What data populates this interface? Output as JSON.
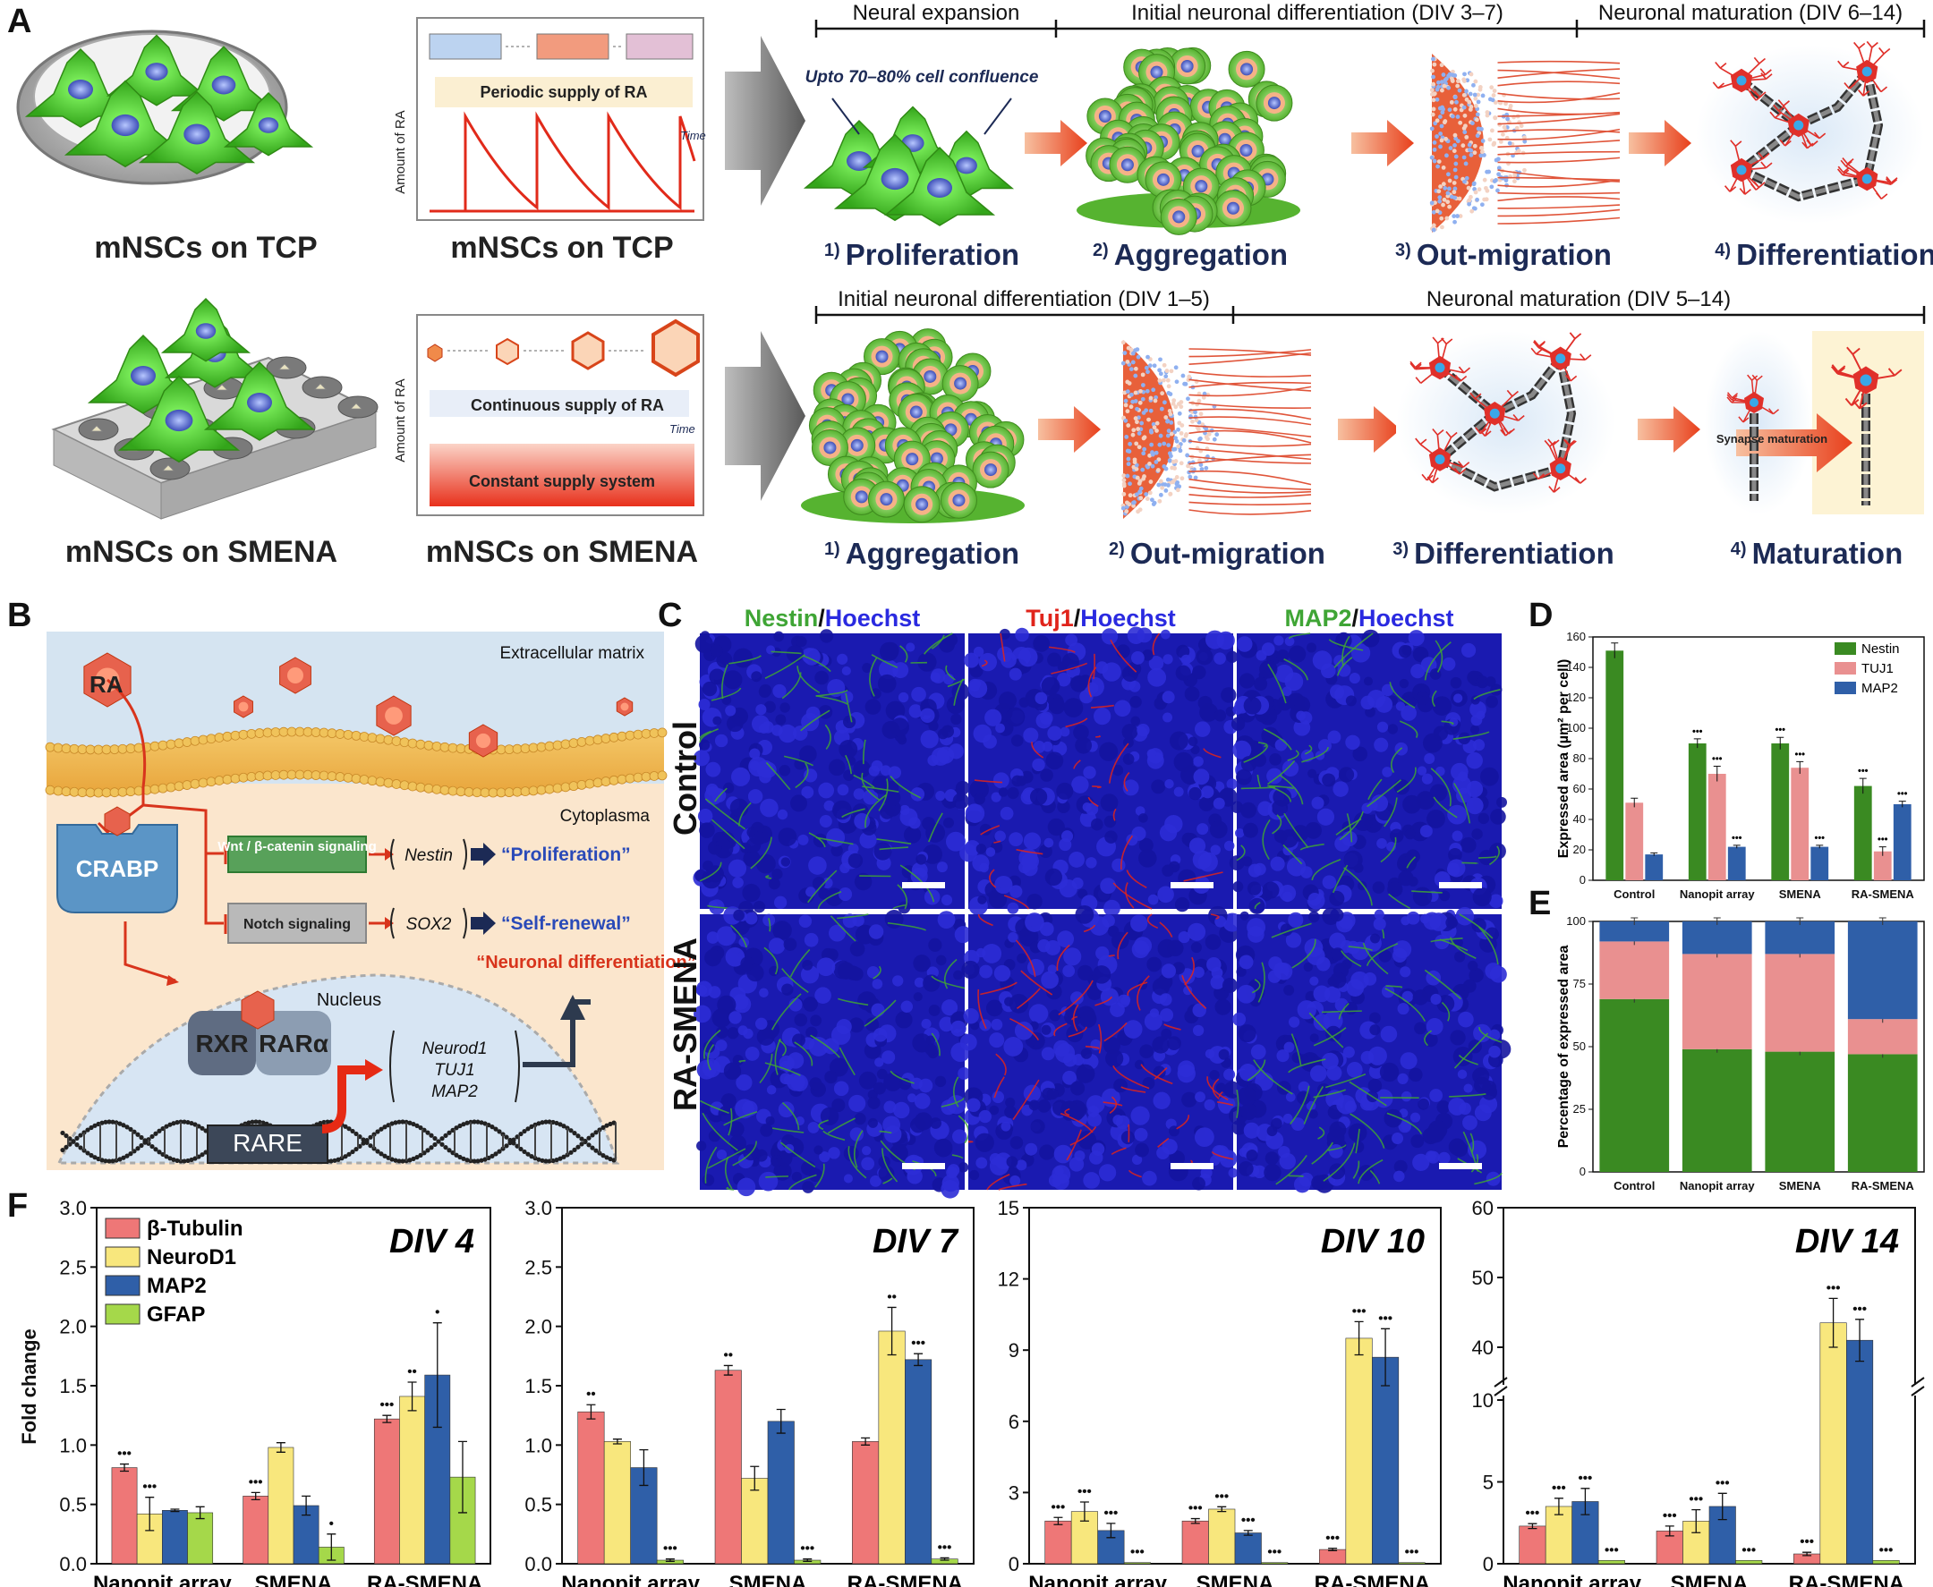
{
  "panel_letters": [
    "A",
    "B",
    "C",
    "D",
    "E",
    "F"
  ],
  "panel_a": {
    "row1_cells_label": "mNSCs on TCP",
    "row1_ra_label": "mNSCs on TCP",
    "row2_cells_label": "mNSCs on SMENA",
    "row2_ra_label": "mNSCs on SMENA",
    "ra_axis": "Amount of RA",
    "time_label": "Time",
    "periodic": "Periodic supply of RA",
    "continuous": "Continuous supply of RA",
    "constant": "Constant supply system",
    "confluence": "Upto 70–80% cell confluence",
    "synapse": "Synapse maturation",
    "row1_phases": [
      "Neural expansion",
      "Initial neuronal differentiation (DIV 3–7)",
      "Neuronal maturation (DIV 6–14)"
    ],
    "row2_phases": [
      "Initial neuronal differentiation (DIV 1–5)",
      "Neuronal maturation (DIV 5–14)"
    ],
    "row1_steps": [
      {
        "n": "1)",
        "t": "Proliferation"
      },
      {
        "n": "2)",
        "t": "Aggregation"
      },
      {
        "n": "3)",
        "t": "Out-migration"
      },
      {
        "n": "4)",
        "t": "Differentiation"
      }
    ],
    "row2_steps": [
      {
        "n": "1)",
        "t": "Aggregation"
      },
      {
        "n": "2)",
        "t": "Out-migration"
      },
      {
        "n": "3)",
        "t": "Differentiation"
      },
      {
        "n": "4)",
        "t": "Maturation"
      }
    ]
  },
  "panel_b": {
    "ra": "RA",
    "ecm": "Extracellular matrix",
    "cytoplasma": "Cytoplasma",
    "crabp": "CRABP",
    "wnt": "Wnt / β-catenin signaling",
    "notch": "Notch signaling",
    "nestin": "Nestin",
    "sox2": "SOX2",
    "proliferation": "“Proliferation”",
    "self_renewal": "“Self-renewal”",
    "neuronal_diff": "“Neuronal differentiation”",
    "nucleus": "Nucleus",
    "rxr": "RXR",
    "rar": "RARα",
    "rare": "RARE",
    "genes": [
      "Neurod1",
      "TUJ1",
      "MAP2"
    ]
  },
  "panel_c": {
    "columns": [
      {
        "a": "Nestin",
        "b": "/",
        "c": "Hoechst",
        "color": "#3fa535"
      },
      {
        "a": "Tuj1",
        "b": "/",
        "c": "Hoechst",
        "color": "#e0241b"
      },
      {
        "a": "MAP2",
        "b": "/",
        "c": "Hoechst",
        "color": "#3fa535"
      }
    ],
    "hoechst_color": "#2a2ae0",
    "rows": [
      "Control",
      "RA-SMENA"
    ]
  },
  "chart_data": [
    {
      "id": "D",
      "type": "bar",
      "categories": [
        "Control",
        "Nanopit array",
        "SMENA",
        "RA-SMENA"
      ],
      "series": [
        {
          "name": "Nestin",
          "color": "#3a8a22",
          "values": [
            151,
            90,
            90,
            62
          ],
          "err": [
            5,
            3,
            4,
            5
          ],
          "sig": [
            "",
            "•••",
            "•••",
            "•••"
          ]
        },
        {
          "name": "TUJ1",
          "color": "#e99090",
          "values": [
            51,
            70,
            74,
            19
          ],
          "err": [
            3,
            5,
            4,
            3
          ],
          "sig": [
            "",
            "•••",
            "•••",
            "•••"
          ]
        },
        {
          "name": "MAP2",
          "color": "#2f5fa8",
          "values": [
            17,
            22,
            22,
            50
          ],
          "err": [
            1,
            1,
            1,
            2
          ],
          "sig": [
            "",
            "•••",
            "•••",
            "•••"
          ]
        }
      ],
      "ylabel": "Expressed area (µm² per cell)",
      "ylim": [
        0,
        160
      ],
      "yticks": [
        0,
        20,
        40,
        60,
        80,
        100,
        120,
        140,
        160
      ]
    },
    {
      "id": "E",
      "type": "bar",
      "stacked": true,
      "categories": [
        "Control",
        "Nanopit array",
        "SMENA",
        "RA-SMENA"
      ],
      "series": [
        {
          "name": "Nestin",
          "color": "#3a8a22",
          "values": [
            69,
            49,
            48,
            47
          ]
        },
        {
          "name": "TUJ1",
          "color": "#e99090",
          "values": [
            23,
            38,
            39,
            14
          ]
        },
        {
          "name": "MAP2",
          "color": "#2f5fa8",
          "values": [
            8,
            13,
            13,
            39
          ]
        }
      ],
      "ylabel": "Percentage of expressed area",
      "ylim": [
        0,
        100
      ],
      "yticks": [
        0,
        25,
        50,
        75,
        100
      ]
    },
    {
      "id": "F1",
      "type": "bar",
      "title": "DIV 4",
      "categories": [
        "Nanopit array",
        "SMENA",
        "RA-SMENA"
      ],
      "legend": [
        "β-Tubulin",
        "NeuroD1",
        "MAP2",
        "GFAP"
      ],
      "colors": [
        "#ee7777",
        "#f8e77d",
        "#2f5fa8",
        "#a5d84a"
      ],
      "values": [
        [
          0.81,
          0.42,
          0.45,
          0.43
        ],
        [
          0.57,
          0.98,
          0.49,
          0.14
        ],
        [
          1.22,
          1.41,
          1.59,
          0.73
        ]
      ],
      "err": [
        [
          0.03,
          0.14,
          0.01,
          0.05
        ],
        [
          0.03,
          0.04,
          0.08,
          0.11
        ],
        [
          0.03,
          0.12,
          0.44,
          0.3
        ]
      ],
      "sig": [
        [
          "•••",
          "•••",
          "",
          ""
        ],
        [
          "•••",
          "",
          "",
          "•"
        ],
        [
          "•••",
          "••",
          "•",
          ""
        ]
      ],
      "ylabel": "Fold change",
      "ylim": [
        0,
        3
      ],
      "yticks": [
        "0.0",
        "0.5",
        "1.0",
        "1.5",
        "2.0",
        "2.5",
        "3.0"
      ]
    },
    {
      "id": "F2",
      "type": "bar",
      "title": "DIV 7",
      "categories": [
        "Nanopit array",
        "SMENA",
        "RA-SMENA"
      ],
      "values": [
        [
          1.28,
          1.03,
          0.81,
          0.03
        ],
        [
          1.63,
          0.72,
          1.2,
          0.03
        ],
        [
          1.03,
          1.96,
          1.72,
          0.04
        ]
      ],
      "err": [
        [
          0.06,
          0.02,
          0.15,
          0.01
        ],
        [
          0.04,
          0.1,
          0.1,
          0.01
        ],
        [
          0.03,
          0.2,
          0.05,
          0.01
        ]
      ],
      "sig": [
        [
          "••",
          "",
          "",
          "•••"
        ],
        [
          "••",
          "",
          "",
          "•••"
        ],
        [
          "",
          "••",
          "•••",
          "•••"
        ]
      ],
      "ylim": [
        0,
        3
      ],
      "yticks": [
        "0.0",
        "0.5",
        "1.0",
        "1.5",
        "2.0",
        "2.5",
        "3.0"
      ]
    },
    {
      "id": "F3",
      "type": "bar",
      "title": "DIV 10",
      "categories": [
        "Nanopit array",
        "SMENA",
        "RA-SMENA"
      ],
      "values": [
        [
          1.8,
          2.2,
          1.4,
          0.05
        ],
        [
          1.8,
          2.3,
          1.3,
          0.05
        ],
        [
          0.6,
          9.5,
          8.7,
          0.05
        ]
      ],
      "err": [
        [
          0.15,
          0.4,
          0.3,
          0
        ],
        [
          0.1,
          0.1,
          0.1,
          0
        ],
        [
          0.05,
          0.7,
          1.2,
          0
        ]
      ],
      "sig": [
        [
          "•••",
          "•••",
          "•••",
          "•••"
        ],
        [
          "•••",
          "•••",
          "•••",
          "•••"
        ],
        [
          "•••",
          "•••",
          "•••",
          "•••"
        ]
      ],
      "ylim": [
        0,
        15
      ],
      "yticks": [
        "0",
        "3",
        "6",
        "9",
        "12",
        "15"
      ]
    },
    {
      "id": "F4",
      "type": "bar",
      "title": "DIV 14",
      "broken_axis": true,
      "categories": [
        "Nanopit array",
        "SMENA",
        "RA-SMENA"
      ],
      "values": [
        [
          2.3,
          3.5,
          3.8,
          0.2
        ],
        [
          2.0,
          2.6,
          3.5,
          0.2
        ],
        [
          0.6,
          43.5,
          41.0,
          0.2
        ]
      ],
      "err": [
        [
          0.15,
          0.5,
          0.8,
          0
        ],
        [
          0.3,
          0.7,
          0.8,
          0
        ],
        [
          0.1,
          3.5,
          3.0,
          0
        ]
      ],
      "sig": [
        [
          "•••",
          "•••",
          "•••",
          "•••"
        ],
        [
          "•••",
          "•••",
          "•••",
          "•••"
        ],
        [
          "•••",
          "•••",
          "•••",
          "•••"
        ]
      ],
      "yticks": [
        "0",
        "5",
        "10",
        "40",
        "50",
        "60"
      ]
    }
  ]
}
